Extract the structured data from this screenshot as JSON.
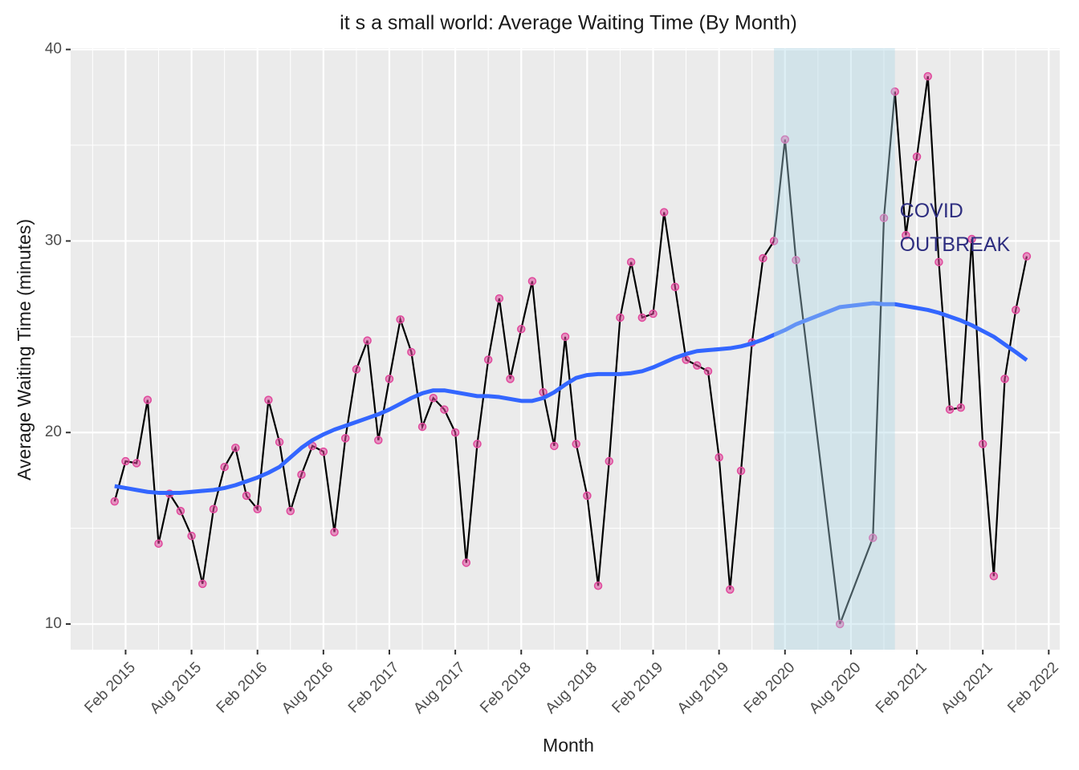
{
  "chart_data": {
    "type": "line",
    "title": "it s a small world: Average Waiting Time (By Month)",
    "x_label": "Month",
    "y_label": "Average Waiting Time (minutes)",
    "x": [
      "2015-01",
      "2015-02",
      "2015-03",
      "2015-04",
      "2015-05",
      "2015-06",
      "2015-07",
      "2015-08",
      "2015-09",
      "2015-10",
      "2015-11",
      "2015-12",
      "2016-01",
      "2016-02",
      "2016-03",
      "2016-04",
      "2016-05",
      "2016-06",
      "2016-07",
      "2016-08",
      "2016-09",
      "2016-10",
      "2016-11",
      "2016-12",
      "2017-01",
      "2017-02",
      "2017-03",
      "2017-04",
      "2017-05",
      "2017-06",
      "2017-07",
      "2017-08",
      "2017-09",
      "2017-10",
      "2017-11",
      "2017-12",
      "2018-01",
      "2018-02",
      "2018-03",
      "2018-04",
      "2018-05",
      "2018-06",
      "2018-07",
      "2018-08",
      "2018-09",
      "2018-10",
      "2018-11",
      "2018-12",
      "2019-01",
      "2019-02",
      "2019-03",
      "2019-04",
      "2019-05",
      "2019-06",
      "2019-07",
      "2019-08",
      "2019-09",
      "2019-10",
      "2019-11",
      "2019-12",
      "2020-01",
      "2020-02",
      "2020-03",
      "2020-07",
      "2020-10",
      "2020-11",
      "2020-12",
      "2021-01",
      "2021-02",
      "2021-03",
      "2021-04",
      "2021-05",
      "2021-06",
      "2021-07",
      "2021-08",
      "2021-09",
      "2021-10",
      "2021-11",
      "2021-12"
    ],
    "series": [
      {
        "color": "#000000",
        "point_color": "#e0489c",
        "values": [
          16.4,
          18.5,
          18.4,
          21.7,
          14.2,
          16.8,
          15.9,
          14.6,
          12.1,
          16.0,
          18.2,
          19.2,
          16.7,
          16.0,
          21.7,
          19.5,
          15.9,
          17.8,
          19.3,
          19.0,
          14.8,
          19.7,
          23.3,
          24.8,
          19.6,
          22.8,
          25.9,
          24.2,
          20.3,
          21.8,
          21.2,
          20.0,
          13.2,
          19.4,
          23.8,
          27.0,
          22.8,
          25.4,
          27.9,
          22.1,
          19.3,
          25.0,
          19.4,
          16.7,
          12.0,
          18.5,
          26.0,
          28.9,
          26.0,
          26.2,
          31.5,
          27.6,
          23.8,
          23.5,
          23.2,
          18.7,
          11.8,
          18.0,
          24.7,
          29.1,
          30.0,
          35.3,
          29.0,
          10.0,
          14.5,
          31.2,
          37.8,
          30.3,
          34.4,
          38.6,
          28.9,
          21.2,
          21.3,
          30.1,
          19.4,
          12.5,
          22.8,
          26.4,
          29.2
        ]
      },
      {
        "color": "#3366ff",
        "smooth": true,
        "values": [
          17.2,
          17.1,
          17.0,
          16.9,
          16.85,
          16.85,
          16.85,
          16.9,
          16.95,
          17.0,
          17.1,
          17.25,
          17.45,
          17.65,
          17.9,
          18.2,
          18.7,
          19.2,
          19.6,
          19.9,
          20.15,
          20.35,
          20.55,
          20.75,
          20.95,
          21.2,
          21.5,
          21.8,
          22.05,
          22.2,
          22.2,
          22.1,
          22.0,
          21.9,
          21.9,
          21.85,
          21.75,
          21.65,
          21.65,
          21.8,
          22.1,
          22.5,
          22.85,
          23.0,
          23.05,
          23.05,
          23.05,
          23.1,
          23.2,
          23.4,
          23.65,
          23.9,
          24.1,
          24.25,
          24.3,
          24.35,
          24.4,
          24.5,
          24.65,
          24.85,
          25.1,
          25.35,
          25.65,
          26.55,
          26.75,
          26.7,
          26.7,
          26.6,
          26.5,
          26.4,
          26.25,
          26.05,
          25.85,
          25.6,
          25.3,
          25.0,
          24.6,
          24.2,
          23.78
        ]
      }
    ],
    "shaded_range": {
      "from": "2020-01",
      "to": "2020-12",
      "color": "#add8e6"
    },
    "annotation": {
      "lines": [
        "COVID",
        "OUTBREAK"
      ],
      "at_x": "2020-12",
      "at_y": 31.5,
      "color": "#2e2e80"
    },
    "xlim": [
      "2014-09",
      "2022-03"
    ],
    "xticks": [
      {
        "value": "2015-02",
        "label": "Feb 2015"
      },
      {
        "value": "2015-08",
        "label": "Aug 2015"
      },
      {
        "value": "2016-02",
        "label": "Feb 2016"
      },
      {
        "value": "2016-08",
        "label": "Aug 2016"
      },
      {
        "value": "2017-02",
        "label": "Feb 2017"
      },
      {
        "value": "2017-08",
        "label": "Aug 2017"
      },
      {
        "value": "2018-02",
        "label": "Feb 2018"
      },
      {
        "value": "2018-08",
        "label": "Aug 2018"
      },
      {
        "value": "2019-02",
        "label": "Feb 2019"
      },
      {
        "value": "2019-08",
        "label": "Aug 2019"
      },
      {
        "value": "2020-02",
        "label": "Feb 2020"
      },
      {
        "value": "2020-08",
        "label": "Aug 2020"
      },
      {
        "value": "2021-02",
        "label": "Feb 2021"
      },
      {
        "value": "2021-08",
        "label": "Aug 2021"
      },
      {
        "value": "2022-02",
        "label": "Feb 2022"
      }
    ],
    "ylim": [
      8.66,
      40.07
    ],
    "yticks": [
      10,
      20,
      30,
      40
    ],
    "grid": true
  }
}
